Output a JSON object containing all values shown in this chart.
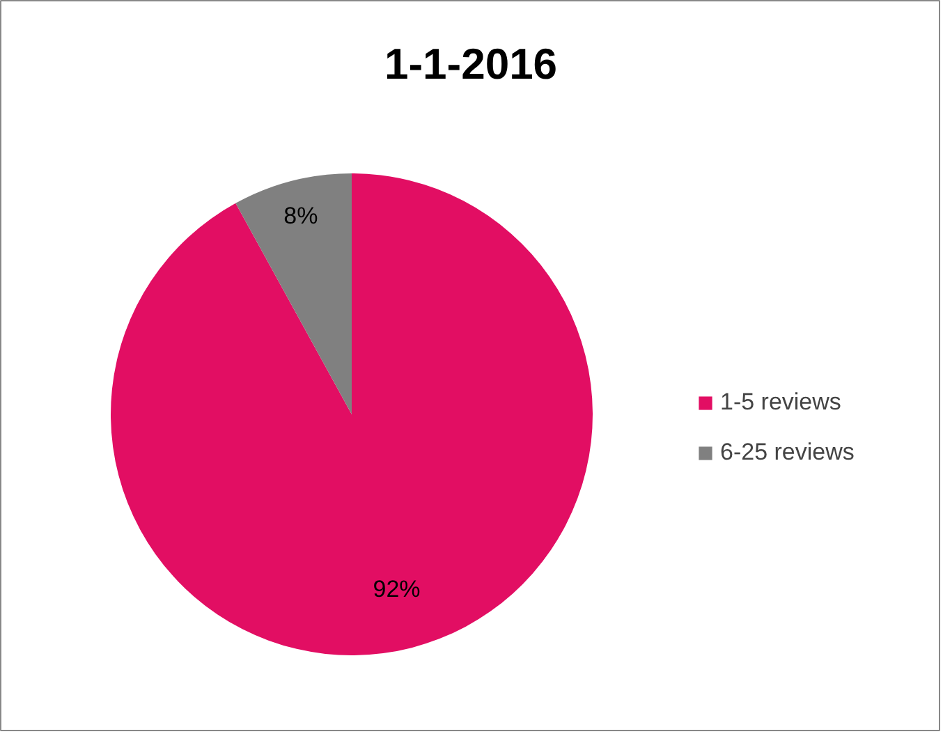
{
  "chart_data": {
    "type": "pie",
    "title": "1-1-2016",
    "categories": [
      "1-5 reviews",
      "6-25 reviews"
    ],
    "values": [
      92,
      8
    ],
    "colors": [
      "#e20e63",
      "#808080"
    ],
    "value_labels": [
      "92%",
      "8%"
    ],
    "legend": "right"
  }
}
